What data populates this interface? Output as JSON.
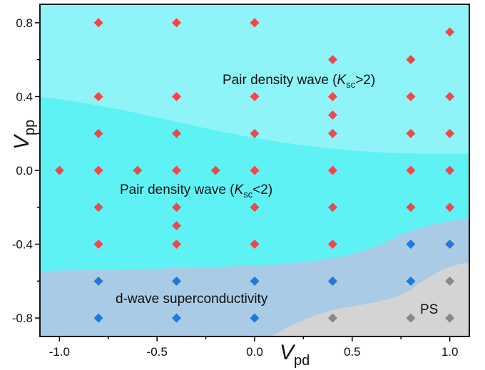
{
  "chart_data": {
    "type": "scatter",
    "xlim": [
      -1.1,
      1.1
    ],
    "ylim": [
      -0.9,
      0.9
    ],
    "x_ticks": [
      "-1.0",
      "-0.5",
      "0.0",
      "0.5",
      "1.0"
    ],
    "x_tick_values": [
      -1.0,
      -0.5,
      0.0,
      0.5,
      1.0
    ],
    "y_ticks": [
      "0.8",
      "0.4",
      "0.0",
      "-0.4",
      "-0.8"
    ],
    "y_tick_values": [
      0.8,
      0.4,
      0.0,
      -0.4,
      -0.8
    ],
    "xlabel": {
      "main": "V",
      "sub": "pd"
    },
    "ylabel": {
      "main": "V",
      "sub": "pp"
    },
    "regions": [
      {
        "id": "pdw-high",
        "color": "#8ef4f7"
      },
      {
        "id": "pdw-low",
        "color": "#5ff2f5"
      },
      {
        "id": "dsc",
        "color": "#a9cbe6"
      },
      {
        "id": "ps",
        "color": "#d4d4d4"
      }
    ],
    "region_labels": {
      "pdw_high": {
        "pre": "Pair density wave (",
        "k": "K",
        "sub": "sc",
        "post": ">2)"
      },
      "pdw_low": {
        "pre": "Pair density wave (",
        "k": "K",
        "sub": "sc",
        "post": "<2)"
      },
      "dsc": "d-wave superconductivity",
      "ps": "PS"
    },
    "series": [
      {
        "color": "#f04848",
        "points": [
          [
            -0.8,
            0.8
          ],
          [
            -0.4,
            0.8
          ],
          [
            0.0,
            0.8
          ],
          [
            1.0,
            0.75
          ],
          [
            0.4,
            0.6
          ],
          [
            0.8,
            0.6
          ],
          [
            -0.8,
            0.4
          ],
          [
            -0.4,
            0.4
          ],
          [
            0.0,
            0.4
          ],
          [
            0.4,
            0.4
          ],
          [
            0.8,
            0.4
          ],
          [
            1.0,
            0.4
          ],
          [
            0.4,
            0.3
          ],
          [
            -0.8,
            0.2
          ],
          [
            -0.4,
            0.2
          ],
          [
            0.0,
            0.2
          ],
          [
            0.4,
            0.2
          ],
          [
            0.8,
            0.2
          ],
          [
            1.0,
            0.2
          ],
          [
            -1.0,
            0.0
          ],
          [
            -0.8,
            0.0
          ],
          [
            -0.6,
            0.0
          ],
          [
            -0.4,
            0.0
          ],
          [
            -0.2,
            0.0
          ],
          [
            0.0,
            0.0
          ],
          [
            0.4,
            0.0
          ],
          [
            0.8,
            0.0
          ],
          [
            1.0,
            0.0
          ],
          [
            -0.8,
            -0.2
          ],
          [
            -0.4,
            -0.2
          ],
          [
            0.0,
            -0.2
          ],
          [
            0.4,
            -0.2
          ],
          [
            0.8,
            -0.2
          ],
          [
            1.0,
            -0.2
          ],
          [
            -0.4,
            -0.3
          ],
          [
            -0.8,
            -0.4
          ],
          [
            -0.4,
            -0.4
          ],
          [
            0.0,
            -0.4
          ],
          [
            0.4,
            -0.4
          ]
        ]
      },
      {
        "color": "#2277dd",
        "points": [
          [
            0.8,
            -0.4
          ],
          [
            1.0,
            -0.4
          ],
          [
            -0.8,
            -0.6
          ],
          [
            -0.4,
            -0.6
          ],
          [
            0.0,
            -0.6
          ],
          [
            0.4,
            -0.6
          ],
          [
            0.8,
            -0.6
          ],
          [
            -0.8,
            -0.8
          ],
          [
            -0.4,
            -0.8
          ],
          [
            0.0,
            -0.8
          ]
        ]
      },
      {
        "color": "#888888",
        "points": [
          [
            1.0,
            -0.6
          ],
          [
            0.4,
            -0.8
          ],
          [
            0.8,
            -0.8
          ],
          [
            1.0,
            -0.8
          ]
        ]
      }
    ]
  }
}
